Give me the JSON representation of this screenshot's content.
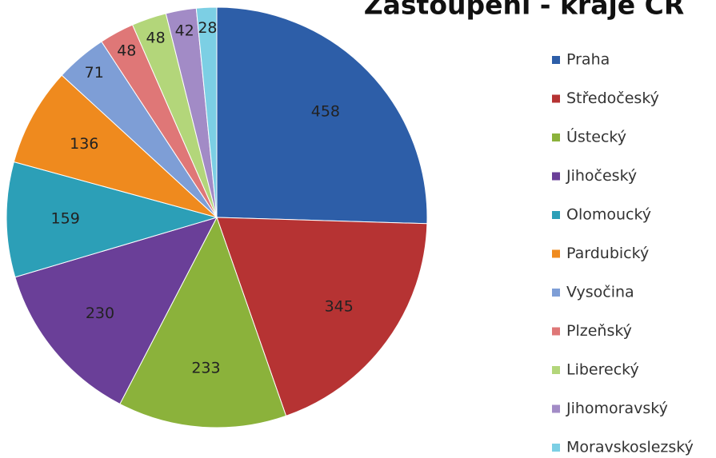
{
  "chart_data": {
    "type": "pie",
    "title": "Zastoupení - kraje ČR",
    "categories": [
      "Praha",
      "Středočeský",
      "Ústecký",
      "Jihočeský",
      "Olomoucký",
      "Pardubický",
      "Vysočina",
      "Plzeňský",
      "Liberecký",
      "Jihomoravský",
      "Moravskoslezský"
    ],
    "values": [
      458,
      345,
      233,
      230,
      159,
      136,
      71,
      48,
      48,
      42,
      28
    ],
    "colors": [
      "#2d5ea8",
      "#b63333",
      "#8bb23b",
      "#6a3f98",
      "#2c9fb7",
      "#ef8a1e",
      "#7e9ed6",
      "#df7777",
      "#b3d67a",
      "#a28bc6",
      "#7ccfe4"
    ],
    "legend": "right"
  }
}
